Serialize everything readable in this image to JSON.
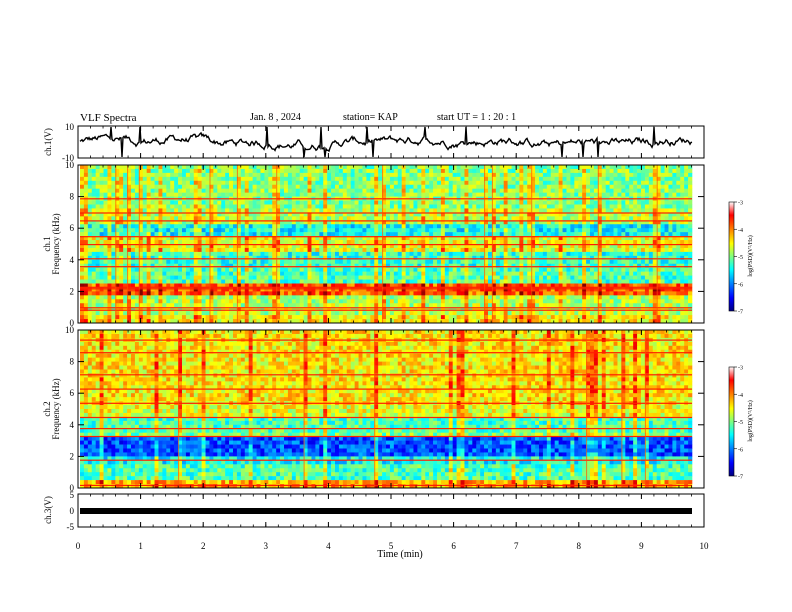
{
  "header": {
    "title": "VLF Spectra",
    "date": "Jan. 8 , 2024",
    "station": "station= KAP",
    "start": "start UT = 1 : 20 : 1"
  },
  "chart_data": [
    {
      "type": "line",
      "ylabel": "ch.1(V)",
      "ylim": [
        -10,
        10
      ],
      "yticks": [
        "10",
        "-10"
      ],
      "xlim": [
        0,
        10
      ],
      "description": "ch.1 waveform amplitude"
    },
    {
      "type": "heatmap",
      "ylabel": "ch.1\nFrequency (kHz)",
      "ylabel_line1": "ch.1",
      "ylabel_line2": "Frequency (kHz)",
      "ylim": [
        0,
        10
      ],
      "yticks": [
        "0",
        "2",
        "4",
        "6",
        "8",
        "10"
      ],
      "xlim": [
        0,
        10
      ],
      "colorbar": {
        "label": "log(PSD)(V²/Hz)",
        "ticks": [
          "-3",
          "-4",
          "-5",
          "-6",
          "-7"
        ],
        "range": [
          -7,
          -3
        ]
      }
    },
    {
      "type": "heatmap",
      "ylabel_line1": "ch.2",
      "ylabel_line2": "Frequency (kHz)",
      "ylim": [
        0,
        10
      ],
      "yticks": [
        "0",
        "2",
        "4",
        "6",
        "8",
        "10"
      ],
      "xlim": [
        0,
        10
      ],
      "colorbar": {
        "label": "log(PSD)(V²/Hz)",
        "ticks": [
          "-3",
          "-4",
          "-5",
          "-6",
          "-7"
        ],
        "range": [
          -7,
          -3
        ]
      }
    },
    {
      "type": "line",
      "ylabel": "ch.3(V)",
      "ylim": [
        -5,
        5
      ],
      "yticks": [
        "5",
        "0",
        "-5"
      ],
      "xlim": [
        0,
        10
      ],
      "xlabel": "Time (min)",
      "xticks": [
        "0",
        "1",
        "2",
        "3",
        "4",
        "5",
        "6",
        "7",
        "8",
        "9",
        "10"
      ]
    }
  ],
  "colors": {
    "jet": [
      "#000080",
      "#0000ff",
      "#00ffff",
      "#ffff00",
      "#ff0000",
      "#800000"
    ]
  }
}
